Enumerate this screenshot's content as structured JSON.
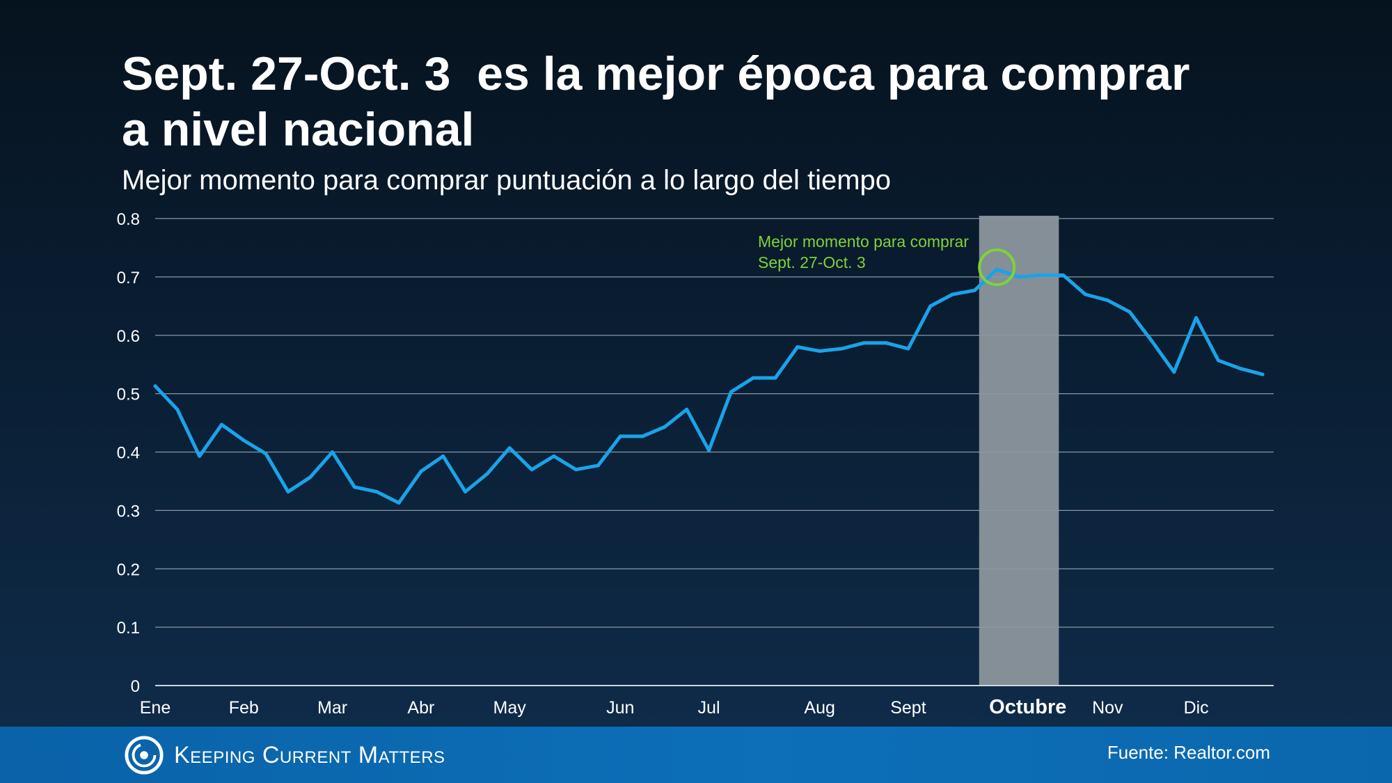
{
  "header": {
    "title_line1": "Sept. 27-Oct. 3  es la mejor época para comprar",
    "title_line2": "a nivel nacional",
    "subtitle": "Mejor momento para comprar puntuación a lo largo del tiempo"
  },
  "footer": {
    "brand": "Keeping Current Matters",
    "source": "Fuente: Realtor.com"
  },
  "colors": {
    "line": "#1aa3e8",
    "highlight_band": "#848f97",
    "annotation": "#7fd23a",
    "grid": "#8b98a6",
    "text": "#ffffff"
  },
  "chart_data": {
    "type": "line",
    "title": "Mejor momento para comprar puntuación a lo largo del tiempo",
    "xlabel": "",
    "ylabel": "",
    "ylim": [
      0,
      0.8
    ],
    "yticks": [
      "0",
      "0.1",
      "0.2",
      "0.3",
      "0.4",
      "0.5",
      "0.6",
      "0.7",
      "0.8"
    ],
    "xlim": [
      1,
      51.5
    ],
    "x_ticks": [
      {
        "label": "Ene",
        "x": 1,
        "bold": false
      },
      {
        "label": "Feb",
        "x": 5,
        "bold": false
      },
      {
        "label": "Mar",
        "x": 9,
        "bold": false
      },
      {
        "label": "Abr",
        "x": 13,
        "bold": false
      },
      {
        "label": "May",
        "x": 17,
        "bold": false
      },
      {
        "label": "Jun",
        "x": 22,
        "bold": false
      },
      {
        "label": "Jul",
        "x": 26,
        "bold": false
      },
      {
        "label": "Aug",
        "x": 31,
        "bold": false
      },
      {
        "label": "Sept",
        "x": 35,
        "bold": false
      },
      {
        "label": "Octubre",
        "x": 40.4,
        "bold": true
      },
      {
        "label": "Nov",
        "x": 44,
        "bold": false
      },
      {
        "label": "Dic",
        "x": 48,
        "bold": false
      }
    ],
    "highlight_range": [
      38.2,
      41.8
    ],
    "grid": true,
    "series": [
      {
        "x": [
          1,
          2,
          3,
          4,
          5,
          6,
          7,
          8,
          9,
          10,
          11,
          12,
          13,
          14,
          15,
          16,
          17,
          18,
          19,
          20,
          21,
          22,
          23,
          24,
          25,
          26,
          27,
          28,
          29,
          30,
          31,
          32,
          33,
          34,
          35,
          36,
          37,
          38,
          39,
          40,
          41,
          42,
          43,
          44,
          45,
          46,
          47,
          48,
          49,
          50,
          51
        ],
        "values": [
          0.513,
          0.473,
          0.393,
          0.447,
          0.42,
          0.397,
          0.332,
          0.357,
          0.4,
          0.34,
          0.332,
          0.313,
          0.367,
          0.393,
          0.332,
          0.363,
          0.407,
          0.37,
          0.393,
          0.37,
          0.377,
          0.427,
          0.427,
          0.443,
          0.473,
          0.403,
          0.503,
          0.527,
          0.527,
          0.58,
          0.573,
          0.577,
          0.587,
          0.587,
          0.577,
          0.65,
          0.67,
          0.677,
          0.713,
          0.7,
          0.703,
          0.703,
          0.67,
          0.66,
          0.64,
          0.59,
          0.537,
          0.63,
          0.557,
          0.543,
          0.533
        ]
      }
    ],
    "annotation": {
      "line1": "Mejor momento para comprar",
      "line2": "Sept. 27-Oct. 3",
      "x": 39,
      "y": 0.713
    }
  }
}
